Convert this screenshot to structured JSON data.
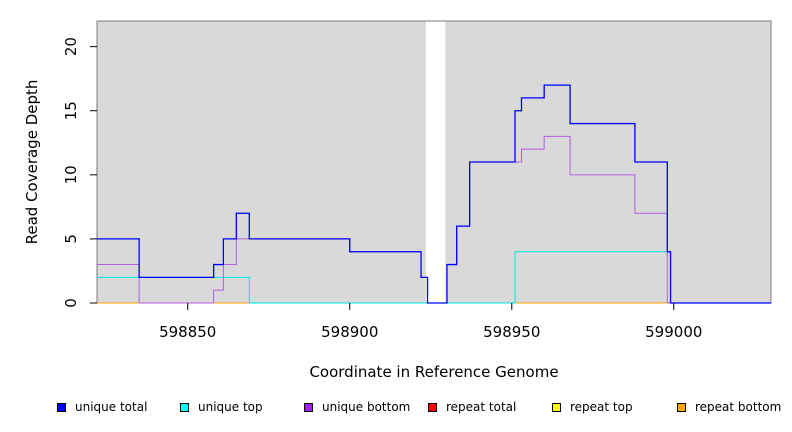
{
  "chart_data": {
    "type": "line",
    "title": "",
    "xlabel": "Coordinate in Reference Genome",
    "ylabel": "Read Coverage Depth",
    "xlim": [
      598822,
      599030
    ],
    "ylim": [
      0,
      22
    ],
    "xticks": [
      598850,
      598900,
      598950,
      599000
    ],
    "yticks": [
      0,
      5,
      10,
      15,
      20
    ],
    "grid": false,
    "background": "#d9d9d9",
    "gap_region": [
      598923.5,
      598929.5
    ],
    "legend_position": "bottom",
    "series": [
      {
        "name": "unique total",
        "color": "#0000ff",
        "steps": [
          [
            598822,
            5
          ],
          [
            598835,
            2
          ],
          [
            598858,
            3
          ],
          [
            598861,
            5
          ],
          [
            598865,
            7
          ],
          [
            598869,
            5
          ],
          [
            598900,
            4
          ],
          [
            598922,
            2
          ],
          [
            598924,
            0
          ],
          [
            598930,
            3
          ],
          [
            598933,
            6
          ],
          [
            598937,
            11
          ],
          [
            598951,
            15
          ],
          [
            598953,
            16
          ],
          [
            598960,
            17
          ],
          [
            598968,
            14
          ],
          [
            598988,
            11
          ],
          [
            598998,
            4
          ],
          [
            598999,
            0
          ],
          [
            599030,
            0
          ]
        ]
      },
      {
        "name": "unique top",
        "color": "#00e5e5",
        "steps": [
          [
            598822,
            2
          ],
          [
            598869,
            0
          ],
          [
            598951,
            4
          ],
          [
            598999,
            0
          ],
          [
            599030,
            0
          ]
        ]
      },
      {
        "name": "unique bottom",
        "color": "#b060e0",
        "steps": [
          [
            598822,
            3
          ],
          [
            598835,
            0
          ],
          [
            598858,
            1
          ],
          [
            598861,
            3
          ],
          [
            598865,
            5
          ],
          [
            598869,
            5
          ],
          [
            598900,
            4
          ],
          [
            598922,
            2
          ],
          [
            598924,
            0
          ],
          [
            598930,
            3
          ],
          [
            598933,
            6
          ],
          [
            598937,
            11
          ],
          [
            598953,
            12
          ],
          [
            598960,
            13
          ],
          [
            598968,
            10
          ],
          [
            598988,
            7
          ],
          [
            598998,
            0
          ],
          [
            599030,
            0
          ]
        ]
      },
      {
        "name": "repeat total",
        "color": "#ff0000",
        "steps": [
          [
            598822,
            0
          ],
          [
            599030,
            0
          ]
        ]
      },
      {
        "name": "repeat top",
        "color": "#ffff00",
        "steps": [
          [
            598822,
            0
          ],
          [
            599030,
            0
          ]
        ]
      },
      {
        "name": "repeat bottom",
        "color": "#ffa500",
        "steps": [
          [
            598822,
            0
          ],
          [
            598999,
            0
          ]
        ]
      }
    ]
  },
  "legend": [
    {
      "label": "unique total",
      "color": "#0000ff"
    },
    {
      "label": "unique top",
      "color": "#00ffff"
    },
    {
      "label": "unique bottom",
      "color": "#a020f0"
    },
    {
      "label": "repeat total",
      "color": "#ff0000"
    },
    {
      "label": "repeat top",
      "color": "#ffff00"
    },
    {
      "label": "repeat bottom",
      "color": "#ffa500"
    }
  ]
}
